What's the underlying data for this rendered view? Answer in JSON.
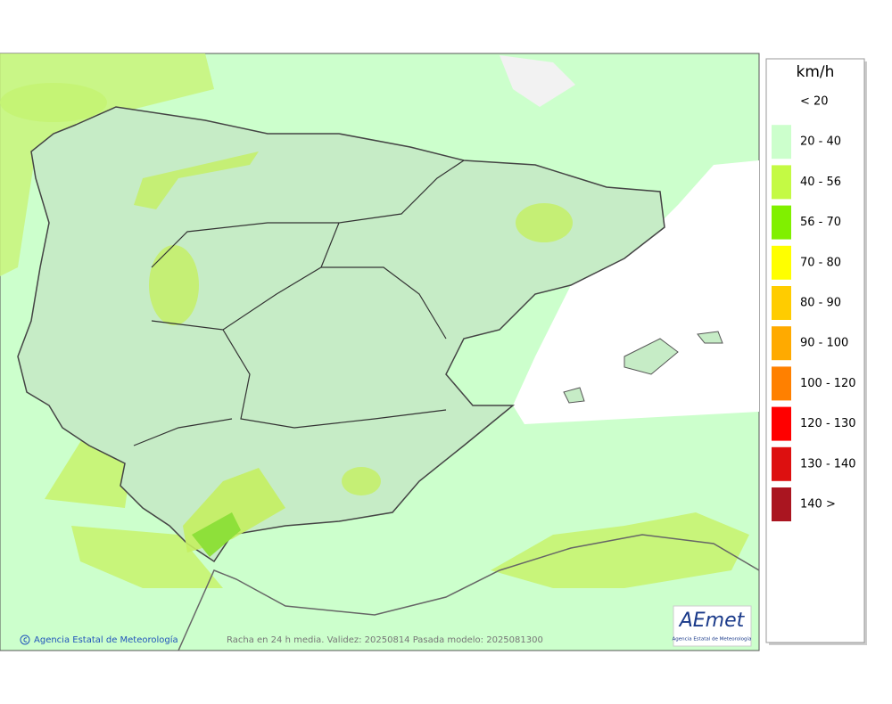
{
  "legend": {
    "title": "km/h",
    "items": [
      {
        "label": "< 20"
      },
      {
        "label": "20 - 40",
        "color": "#ccffcc"
      },
      {
        "label": "40 - 56",
        "color": "#c4fa44"
      },
      {
        "label": "56 - 70",
        "color": "#80f000"
      },
      {
        "label": "70 - 80",
        "color": "#ffff00"
      },
      {
        "label": "80 - 90",
        "color": "#ffcc00"
      },
      {
        "label": "90 - 100",
        "color": "#ffaa00"
      },
      {
        "label": "100 - 120",
        "color": "#ff8000"
      },
      {
        "label": "120 - 130",
        "color": "#ff0000"
      },
      {
        "label": "130 - 140",
        "color": "#dd1010"
      },
      {
        "label": "140 >",
        "color": "#aa1520"
      }
    ]
  },
  "footer": {
    "credit": "Agencia Estatal de Meteorología",
    "caption": "Racha en 24 h media. Validez: 20250814 Pasada modelo: 2025081300"
  },
  "logo": {
    "name": "AEmet",
    "subtitle": "Agencia Estatal de Meteorología"
  }
}
